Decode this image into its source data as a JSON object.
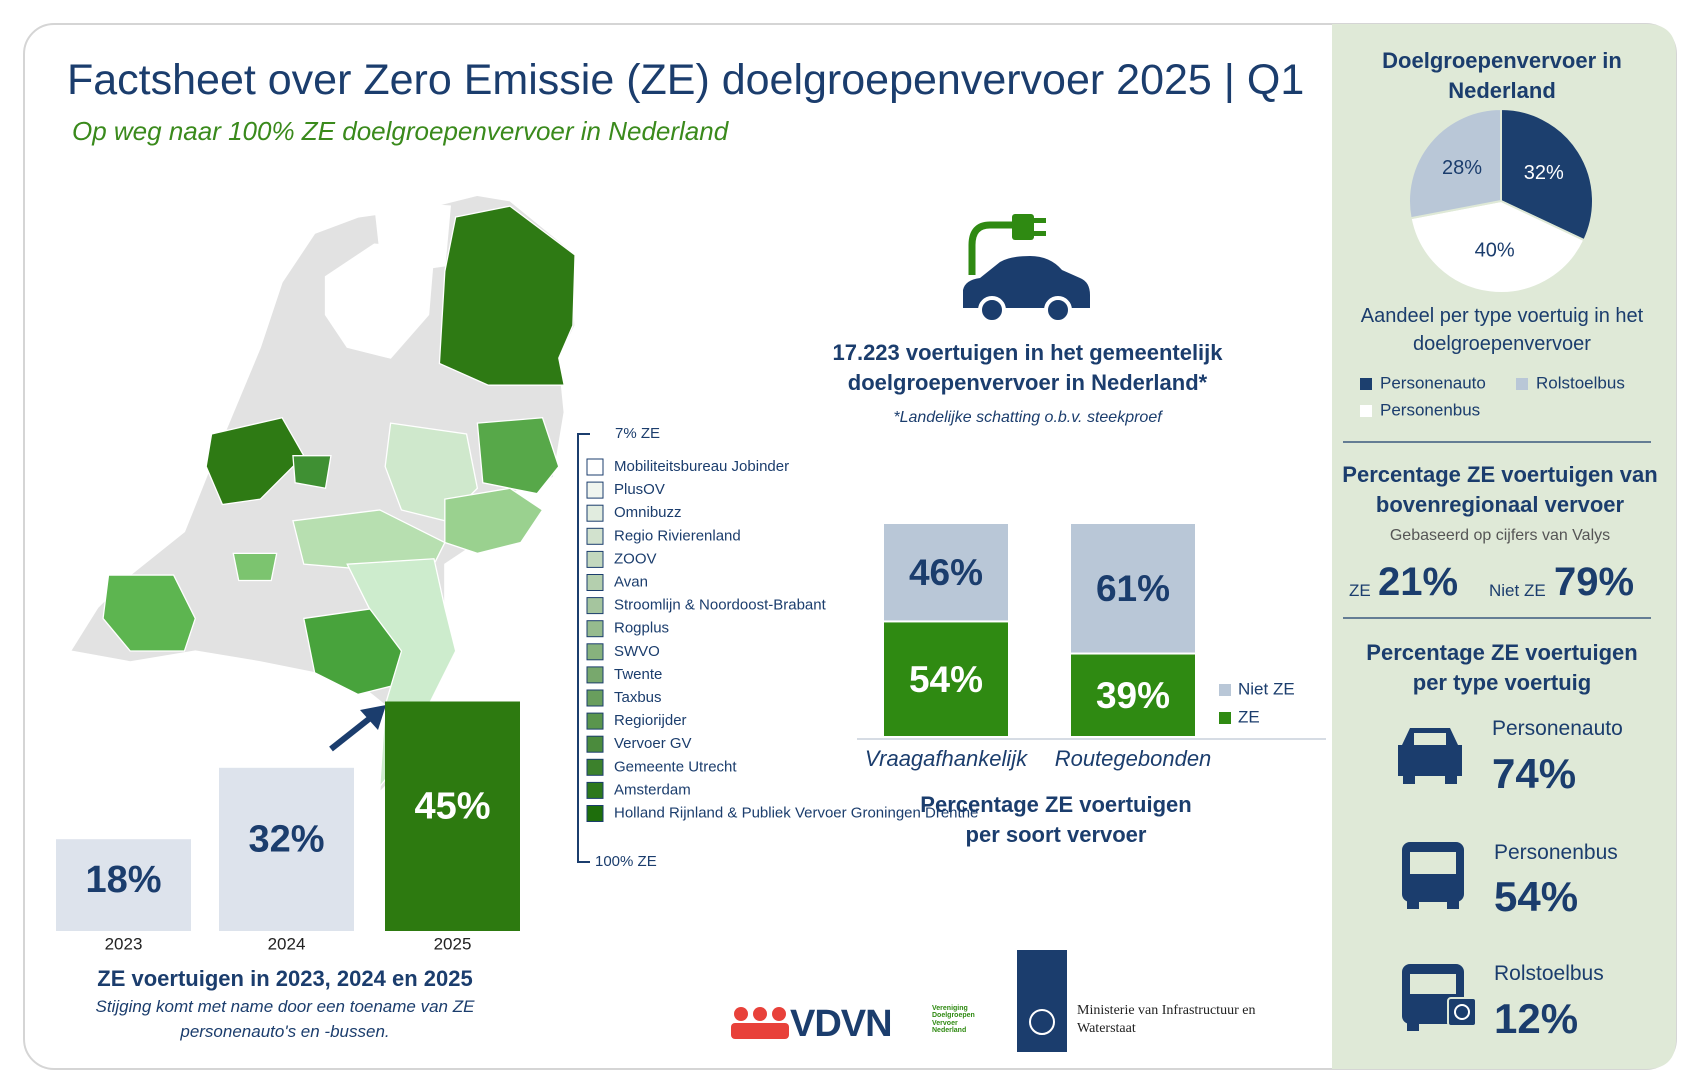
{
  "header": {
    "title": "Factsheet over Zero Emissie (ZE) doelgroepenvervoer 2025 | Q1",
    "subtitle": "Op weg naar 100% ZE doelgroepenvervoer in Nederland"
  },
  "map": {
    "legend_top": "7% ZE",
    "legend_bottom": "100% ZE",
    "regions": [
      "Mobiliteitsbureau Jobinder",
      "PlusOV",
      "Omnibuzz",
      "Regio Rivierenland",
      "ZOOV",
      "Avan",
      "Stroomlijn & Noordoost-Brabant",
      "Rogplus",
      "SWVO",
      "Twente",
      "Taxbus",
      "Regiorijder",
      "Vervoer GV",
      "Gemeente Utrecht",
      "Amsterdam",
      "Holland Rijnland & Publiek Vervoer Groningen Drenthe"
    ]
  },
  "fleet": {
    "text": "17.223 voertuigen in het gemeentelijk doelgroepenvervoer in Nederland*",
    "note": "*Landelijke schatting o.b.v. steekproef"
  },
  "chart_data": [
    {
      "type": "bar",
      "title": "ZE voertuigen in 2023, 2024 en 2025",
      "subtitle": "Stijging komt met name door een toename van ZE personenauto's en -bussen.",
      "categories": [
        "2023",
        "2024",
        "2025"
      ],
      "values": [
        18,
        32,
        45
      ],
      "value_labels": [
        "18%",
        "32%",
        "45%"
      ],
      "colors": [
        "#dde3ec",
        "#dde3ec",
        "#2d7a10"
      ]
    },
    {
      "type": "stacked-bar",
      "title": "Percentage ZE voertuigen per soort vervoer",
      "categories": [
        "Vraagafhankelijk",
        "Routegebonden"
      ],
      "series": [
        {
          "name": "ZE",
          "color": "#2f8a12",
          "values": [
            54,
            39
          ],
          "value_labels": [
            "54%",
            "39%"
          ]
        },
        {
          "name": "Niet ZE",
          "color": "#b9c7d7",
          "values": [
            46,
            61
          ],
          "value_labels": [
            "46%",
            "61%"
          ]
        }
      ],
      "legend": "right"
    },
    {
      "type": "pie",
      "title": "Doelgroepenvervoer in Nederland",
      "subtitle": "Aandeel per type voertuig in het doelgroepenvervoer",
      "categories": [
        "Personenauto",
        "Personenbus",
        "Rolstoelbus"
      ],
      "values": [
        32,
        40,
        28
      ],
      "value_labels": [
        "32%",
        "40%",
        "28%"
      ],
      "colors": [
        "#1c3f6e",
        "#ffffff",
        "#b9c7d7"
      ]
    }
  ],
  "bovenregionaal": {
    "title": "Percentage ZE voertuigen van bovenregionaal vervoer",
    "subtitle": "Gebaseerd op cijfers van Valys",
    "items": [
      {
        "label": "ZE",
        "value": "21%"
      },
      {
        "label": "Niet ZE",
        "value": "79%"
      }
    ]
  },
  "per_type": {
    "title": "Percentage ZE voertuigen per type voertuig",
    "items": [
      {
        "label": "Personenauto",
        "value": "74%"
      },
      {
        "label": "Personenbus",
        "value": "54%"
      },
      {
        "label": "Rolstoelbus",
        "value": "12%"
      }
    ]
  },
  "logos": {
    "vdvn": "VDVN",
    "vdvn_full": "Vereniging Doelgroepen Vervoer Nederland",
    "ministry": "Ministerie van Infrastructuur en Waterstaat"
  }
}
